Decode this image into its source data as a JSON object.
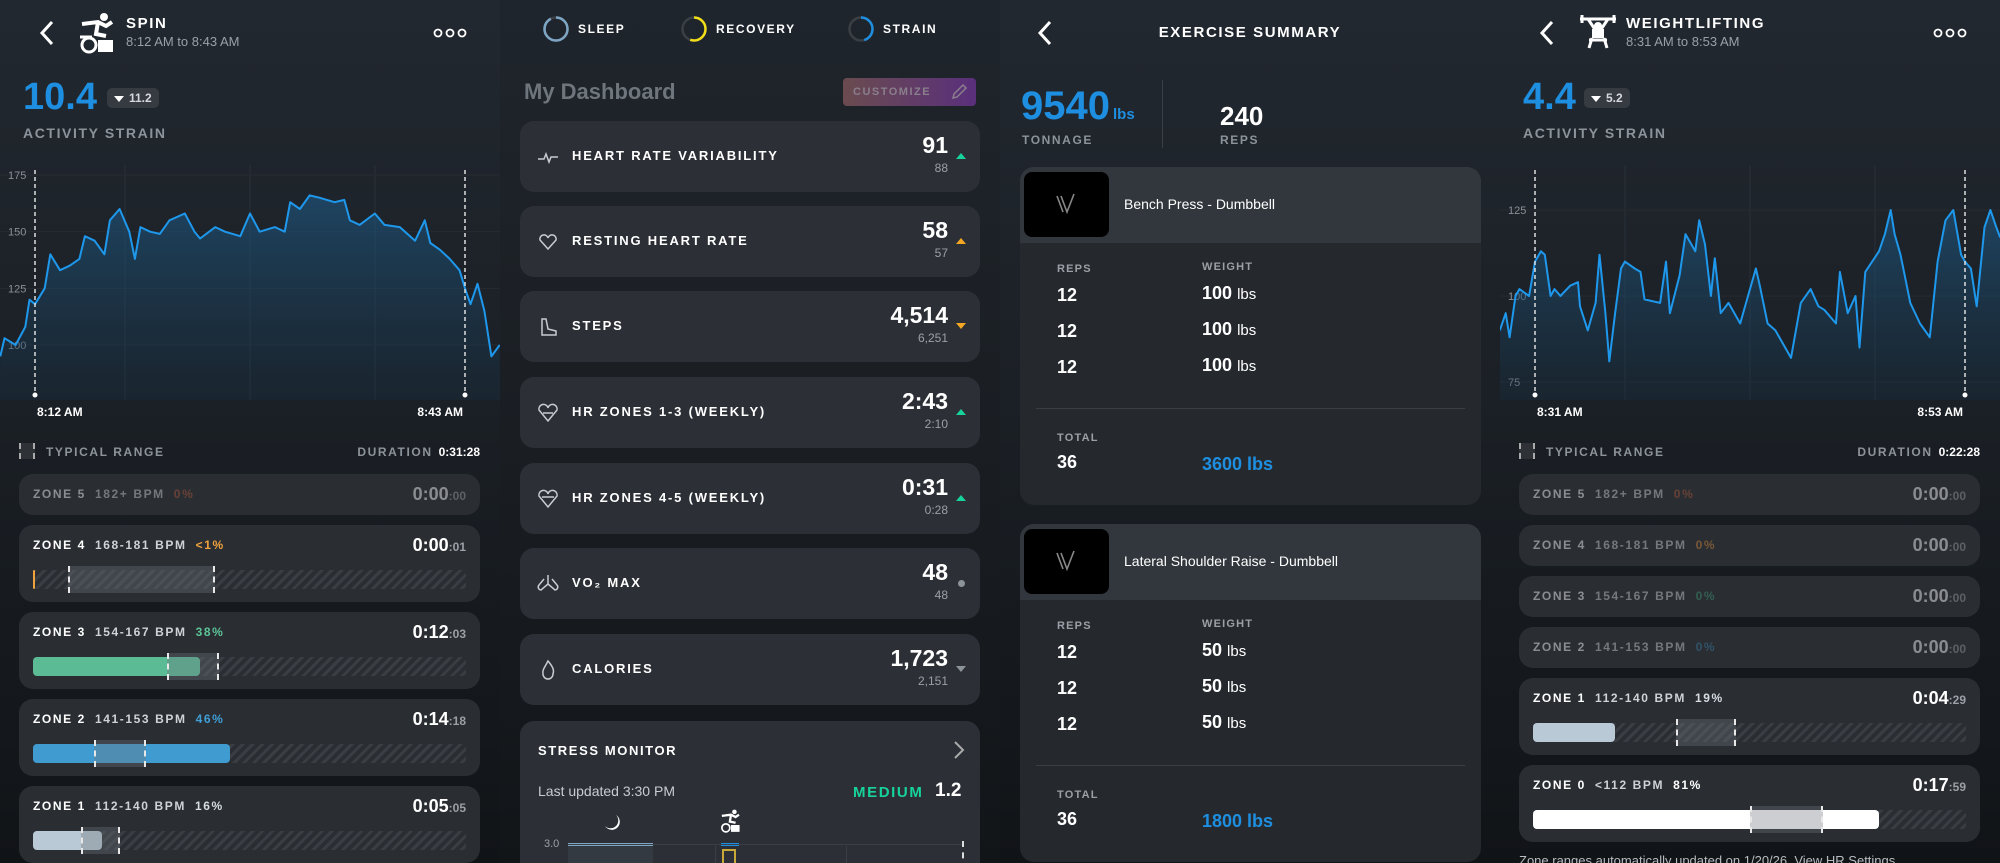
{
  "spin": {
    "title": "SPIN",
    "time_range": "8:12 AM to 8:43 AM",
    "strain": "10.4",
    "strain_prev": "11.2",
    "strain_label": "ACTIVITY STRAIN",
    "typical_range_label": "TYPICAL RANGE",
    "duration_label": "DURATION",
    "duration": "0:31:28",
    "chart_data": {
      "type": "area",
      "ylabel": "BPM",
      "y_ticks": [
        175,
        150,
        125,
        100
      ],
      "ylim": [
        75,
        175
      ],
      "x_start_label": "8:12 AM",
      "x_end_label": "8:43 AM",
      "duration_min": 31,
      "points": [
        [
          -2.5,
          95
        ],
        [
          -2.2,
          103
        ],
        [
          -1.4,
          100
        ],
        [
          -0.7,
          108
        ],
        [
          -0.4,
          120
        ],
        [
          0,
          118
        ],
        [
          0.7,
          125
        ],
        [
          1.1,
          140
        ],
        [
          1.8,
          133
        ],
        [
          2.5,
          135
        ],
        [
          3.2,
          138
        ],
        [
          3.6,
          148
        ],
        [
          4.3,
          146
        ],
        [
          5.0,
          140
        ],
        [
          5.4,
          155
        ],
        [
          6.1,
          160
        ],
        [
          6.8,
          150
        ],
        [
          7.2,
          138
        ],
        [
          7.6,
          152
        ],
        [
          8.3,
          150
        ],
        [
          9.0,
          149
        ],
        [
          9.7,
          155
        ],
        [
          10.8,
          158
        ],
        [
          11.5,
          150
        ],
        [
          11.9,
          147
        ],
        [
          13.0,
          152
        ],
        [
          13.7,
          150
        ],
        [
          14.8,
          148
        ],
        [
          15.5,
          158
        ],
        [
          16.2,
          150
        ],
        [
          17.3,
          152
        ],
        [
          18.0,
          150
        ],
        [
          18.4,
          163
        ],
        [
          19.1,
          160
        ],
        [
          19.8,
          166
        ],
        [
          20.5,
          165
        ],
        [
          21.6,
          163
        ],
        [
          22.3,
          164
        ],
        [
          22.7,
          155
        ],
        [
          23.4,
          153
        ],
        [
          24.5,
          158
        ],
        [
          25.2,
          153
        ],
        [
          26.3,
          152
        ],
        [
          27.4,
          146
        ],
        [
          28.1,
          155
        ],
        [
          28.5,
          145
        ],
        [
          29.2,
          142
        ],
        [
          29.9,
          138
        ],
        [
          30.6,
          133
        ],
        [
          31.0,
          125
        ],
        [
          31.4,
          118
        ],
        [
          31.9,
          127
        ],
        [
          32.4,
          115
        ],
        [
          32.9,
          95
        ],
        [
          33.5,
          100
        ]
      ]
    },
    "zones": [
      {
        "name": "ZONE 5",
        "bpm": "182+ BPM",
        "pct": "0%",
        "pct_color": "#b3583a",
        "time": "0:00",
        "secs": ":00",
        "faded": true,
        "bar": false
      },
      {
        "name": "ZONE 4",
        "bpm": "168-181 BPM",
        "pct": "<1%",
        "pct_color": "#f0a23e",
        "time": "0:00",
        "secs": ":01",
        "faded": false,
        "bar": true,
        "fill": 0.005,
        "fill_color": "#f0a23e",
        "typical": [
          0.08,
          0.42
        ]
      },
      {
        "name": "ZONE 3",
        "bpm": "154-167 BPM",
        "pct": "38%",
        "pct_color": "#5cc497",
        "time": "0:12",
        "secs": ":03",
        "faded": false,
        "bar": true,
        "fill": 0.385,
        "fill_color": "#5abb94",
        "typical": [
          0.31,
          0.43
        ]
      },
      {
        "name": "ZONE 2",
        "bpm": "141-153 BPM",
        "pct": "46%",
        "pct_color": "#3f9fd6",
        "time": "0:14",
        "secs": ":18",
        "faded": false,
        "bar": true,
        "fill": 0.455,
        "fill_color": "#3f9bd0",
        "typical": [
          0.14,
          0.26
        ]
      },
      {
        "name": "ZONE 1",
        "bpm": "112-140 BPM",
        "pct": "16%",
        "pct_color": "#d6dde3",
        "time": "0:05",
        "secs": ":05",
        "faded": false,
        "bar": true,
        "fill": 0.16,
        "fill_color": "#b9c9d5",
        "typical": [
          0.11,
          0.2
        ]
      }
    ]
  },
  "dashboard": {
    "rings": [
      {
        "label": "SLEEP",
        "color": "#7ea6c4",
        "progress": 0.92
      },
      {
        "label": "RECOVERY",
        "color": "#f2dd1a",
        "progress": 0.55
      },
      {
        "label": "STRAIN",
        "color": "#1e8fe0",
        "progress": 0.45
      }
    ],
    "title": "My Dashboard",
    "customize_label": "CUSTOMIZE",
    "metrics": [
      {
        "label": "HEART RATE VARIABILITY",
        "icon": "hrv-icon",
        "value": "91",
        "baseline": "88",
        "trend": "up",
        "trend_color": "#16d39a"
      },
      {
        "label": "RESTING HEART RATE",
        "icon": "resting-heart-icon",
        "value": "58",
        "baseline": "57",
        "trend": "up",
        "trend_color": "#f5a623"
      },
      {
        "label": "STEPS",
        "icon": "shoe-icon",
        "value": "4,514",
        "baseline": "6,251",
        "trend": "down",
        "trend_color": "#f5a623"
      },
      {
        "label": "HR ZONES 1-3 (WEEKLY)",
        "icon": "heart-zones-icon",
        "value": "2:43",
        "baseline": "2:10",
        "trend": "up",
        "trend_color": "#16d39a"
      },
      {
        "label": "HR ZONES 4-5 (WEEKLY)",
        "icon": "heart-zones-high-icon",
        "value": "0:31",
        "baseline": "0:28",
        "trend": "up",
        "trend_color": "#16d39a"
      },
      {
        "label": "VO₂ MAX",
        "icon": "lungs-icon",
        "value": "48",
        "baseline": "48",
        "trend": "flat",
        "trend_color": "#8d939a"
      },
      {
        "label": "CALORIES",
        "icon": "flame-icon",
        "value": "1,723",
        "baseline": "2,151",
        "trend": "down",
        "trend_color": "#8d939a"
      }
    ],
    "stress": {
      "title": "STRESS MONITOR",
      "updated": "Last updated 3:30 PM",
      "level": "MEDIUM",
      "level_color": "#16d39a",
      "value": "1.2",
      "y_label": "3.0"
    }
  },
  "exercise": {
    "title": "EXERCISE SUMMARY",
    "tonnage": "9540",
    "tonnage_unit": "lbs",
    "tonnage_label": "TONNAGE",
    "reps": "240",
    "reps_label": "REPS",
    "items": [
      {
        "name": "Bench Press - Dumbbell",
        "reps_header": "REPS",
        "weight_header": "WEIGHT",
        "sets": [
          {
            "reps": "12",
            "weight": "100",
            "unit": "lbs"
          },
          {
            "reps": "12",
            "weight": "100",
            "unit": "lbs"
          },
          {
            "reps": "12",
            "weight": "100",
            "unit": "lbs"
          }
        ],
        "total_label": "TOTAL",
        "total_reps": "36",
        "total_weight": "3600 lbs"
      },
      {
        "name": "Lateral Shoulder Raise - Dumbbell",
        "reps_header": "REPS",
        "weight_header": "WEIGHT",
        "sets": [
          {
            "reps": "12",
            "weight": "50",
            "unit": "lbs"
          },
          {
            "reps": "12",
            "weight": "50",
            "unit": "lbs"
          },
          {
            "reps": "12",
            "weight": "50",
            "unit": "lbs"
          }
        ],
        "total_label": "TOTAL",
        "total_reps": "36",
        "total_weight": "1800 lbs"
      }
    ]
  },
  "weightlifting": {
    "title": "WEIGHTLIFTING",
    "time_range": "8:31 AM to 8:53 AM",
    "strain": "4.4",
    "strain_prev": "5.2",
    "strain_label": "ACTIVITY STRAIN",
    "typical_range_label": "TYPICAL RANGE",
    "duration_label": "DURATION",
    "duration": "0:22:28",
    "footer": "Zone ranges automatically updated on 1/20/26. View HR Settings",
    "chart_data": {
      "type": "area",
      "ylabel": "BPM",
      "y_ticks": [
        125,
        100,
        75
      ],
      "ylim": [
        72,
        135
      ],
      "x_start_label": "8:31 AM",
      "x_end_label": "8:53 AM",
      "duration_min": 22,
      "points": [
        [
          -1.8,
          90
        ],
        [
          -1.5,
          95
        ],
        [
          -1.3,
          88
        ],
        [
          -1.0,
          100
        ],
        [
          -0.8,
          102
        ],
        [
          -0.3,
          100
        ],
        [
          0,
          110
        ],
        [
          0.3,
          113
        ],
        [
          0.5,
          112
        ],
        [
          0.8,
          100
        ],
        [
          1.0,
          102
        ],
        [
          1.3,
          100
        ],
        [
          1.8,
          103
        ],
        [
          2.2,
          104
        ],
        [
          2.3,
          97
        ],
        [
          2.7,
          90
        ],
        [
          3.1,
          98
        ],
        [
          3.3,
          112
        ],
        [
          3.6,
          95
        ],
        [
          3.8,
          81
        ],
        [
          4.1,
          95
        ],
        [
          4.4,
          108
        ],
        [
          4.6,
          110
        ],
        [
          5.1,
          108
        ],
        [
          5.4,
          107
        ],
        [
          5.6,
          99
        ],
        [
          6.4,
          98
        ],
        [
          6.7,
          110
        ],
        [
          6.9,
          95
        ],
        [
          7.4,
          106
        ],
        [
          7.7,
          118
        ],
        [
          8.2,
          113
        ],
        [
          8.4,
          122
        ],
        [
          8.7,
          115
        ],
        [
          9.0,
          100
        ],
        [
          9.2,
          111
        ],
        [
          9.5,
          95
        ],
        [
          9.9,
          98
        ],
        [
          10.2,
          95
        ],
        [
          10.5,
          92
        ],
        [
          10.9,
          100
        ],
        [
          11.3,
          108
        ],
        [
          11.5,
          103
        ],
        [
          11.9,
          92
        ],
        [
          12.3,
          90
        ],
        [
          12.5,
          88
        ],
        [
          13.1,
          82
        ],
        [
          13.6,
          98
        ],
        [
          14.1,
          102
        ],
        [
          14.5,
          97
        ],
        [
          14.8,
          96
        ],
        [
          15.4,
          92
        ],
        [
          15.6,
          107
        ],
        [
          16.0,
          95
        ],
        [
          16.4,
          100
        ],
        [
          16.6,
          85
        ],
        [
          16.9,
          107
        ],
        [
          17.6,
          113
        ],
        [
          17.9,
          118
        ],
        [
          18.2,
          125
        ],
        [
          18.4,
          118
        ],
        [
          18.7,
          112
        ],
        [
          19.2,
          98
        ],
        [
          19.7,
          92
        ],
        [
          20.2,
          88
        ],
        [
          20.6,
          110
        ],
        [
          21.0,
          122
        ],
        [
          21.4,
          125
        ],
        [
          21.8,
          112
        ],
        [
          22.0,
          110
        ],
        [
          22.3,
          108
        ],
        [
          22.6,
          97
        ],
        [
          23.0,
          120
        ],
        [
          23.3,
          125
        ],
        [
          23.6,
          120
        ],
        [
          23.8,
          117
        ]
      ]
    },
    "zones": [
      {
        "name": "ZONE 5",
        "bpm": "182+ BPM",
        "pct": "0%",
        "pct_color": "#b3583a",
        "time": "0:00",
        "secs": ":00",
        "faded": true,
        "bar": false
      },
      {
        "name": "ZONE 4",
        "bpm": "168-181 BPM",
        "pct": "0%",
        "pct_color": "#d88a3a",
        "time": "0:00",
        "secs": ":00",
        "faded": true,
        "bar": false
      },
      {
        "name": "ZONE 3",
        "bpm": "154-167 BPM",
        "pct": "0%",
        "pct_color": "#3e9a76",
        "time": "0:00",
        "secs": ":00",
        "faded": true,
        "bar": false
      },
      {
        "name": "ZONE 2",
        "bpm": "141-153 BPM",
        "pct": "0%",
        "pct_color": "#3a7fa8",
        "time": "0:00",
        "secs": ":00",
        "faded": true,
        "bar": false
      },
      {
        "name": "ZONE 1",
        "bpm": "112-140 BPM",
        "pct": "19%",
        "pct_color": "#d6dde3",
        "time": "0:04",
        "secs": ":29",
        "faded": false,
        "bar": true,
        "fill": 0.19,
        "fill_color": "#b9c9d5",
        "typical": [
          0.33,
          0.47
        ]
      },
      {
        "name": "ZONE 0",
        "bpm": "<112 BPM",
        "pct": "81%",
        "pct_color": "#ffffff",
        "time": "0:17",
        "secs": ":59",
        "faded": false,
        "bar": true,
        "fill": 0.8,
        "fill_color": "#ffffff",
        "typical": [
          0.5,
          0.67
        ]
      }
    ]
  }
}
